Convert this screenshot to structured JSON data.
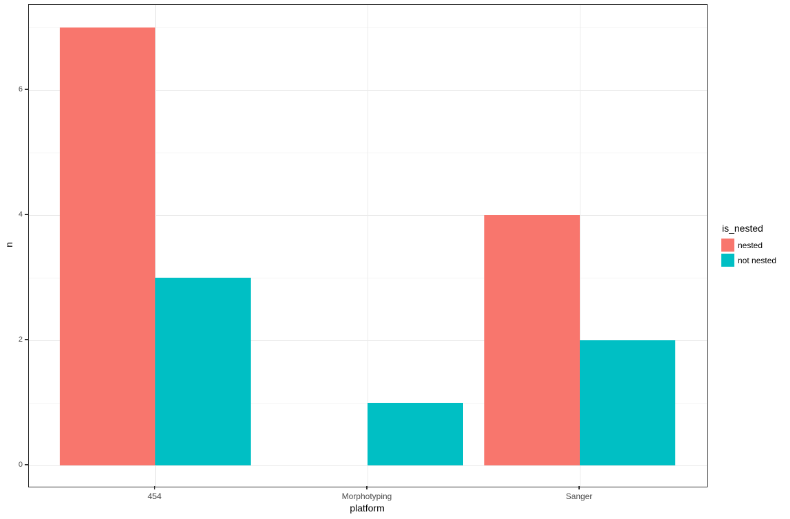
{
  "chart_data": {
    "type": "bar",
    "mode": "grouped",
    "title": "",
    "xlabel": "platform",
    "ylabel": "n",
    "categories": [
      "454",
      "Morphotyping",
      "Sanger"
    ],
    "series": [
      {
        "name": "nested",
        "color": "#F8766D",
        "values": [
          7,
          null,
          4
        ]
      },
      {
        "name": "not nested",
        "color": "#00BFC4",
        "values": [
          3,
          1,
          2
        ]
      }
    ],
    "legend_title": "is_nested",
    "legend_position": "right",
    "ylim": [
      0,
      7.35
    ],
    "yticks_major": [
      0,
      2,
      4,
      6
    ],
    "yticks_minor": [
      1,
      3,
      5,
      7
    ],
    "grid": true
  },
  "style": {
    "background": "#FFFFFF",
    "panel_border": "#333333",
    "grid_major": "#EBEBEB",
    "grid_minor": "#F4F4F4",
    "axis_text": "#4D4D4D",
    "axis_title": "#000000"
  }
}
